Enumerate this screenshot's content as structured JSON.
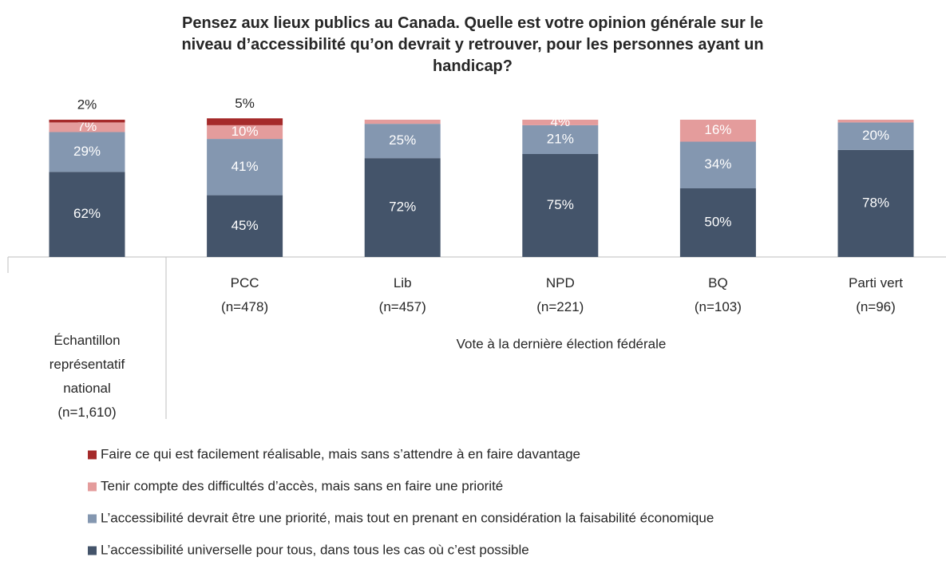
{
  "chart_data": {
    "type": "stacked_bar",
    "title": "Pensez aux lieux publics au Canada. Quelle est votre opinion générale sur le niveau d’accessibilité qu’on devrait y retrouver, pour les personnes ayant un handicap?",
    "categories": [
      "Échantillon\nreprésentatif\nnational\n(n=1,610)",
      "PCC\n(n=478)",
      "Lib\n(n=457)",
      "NPD\n(n=221)",
      "BQ\n(n=103)",
      "Parti vert\n(n=96)"
    ],
    "group_label": "Vote à la dernière élection fédérale",
    "ylim": [
      0,
      100
    ],
    "series": [
      {
        "name": "L’accessibilité universelle pour tous, dans tous les cas où c’est possible",
        "color": "#44546a",
        "values": [
          62,
          45,
          72,
          75,
          50,
          78
        ],
        "value_labels": [
          "62%",
          "45%",
          "72%",
          "75%",
          "50%",
          "78%"
        ]
      },
      {
        "name": "L’accessibilité devrait être une priorité, mais tout en prenant en considération la faisabilité économique",
        "color": "#8497b0",
        "values": [
          29,
          41,
          25,
          21,
          34,
          20
        ],
        "value_labels": [
          "29%",
          "41%",
          "25%",
          "21%",
          "34%",
          "20%"
        ]
      },
      {
        "name": "Tenir compte des difficultés d’accès, mais sans en faire une priorité",
        "color": "#e49c9c",
        "values": [
          7,
          10,
          3,
          4,
          16,
          2
        ],
        "value_labels": [
          "7%",
          "10%",
          null,
          "4%",
          "16%",
          null
        ]
      },
      {
        "name": "Faire ce qui est facilement réalisable, mais sans s’attendre à en faire davantage",
        "color": "#a52a2a",
        "values": [
          2,
          5,
          0,
          0,
          0,
          0
        ],
        "value_labels": [
          "2%",
          "5%",
          null,
          null,
          null,
          null
        ]
      }
    ]
  }
}
